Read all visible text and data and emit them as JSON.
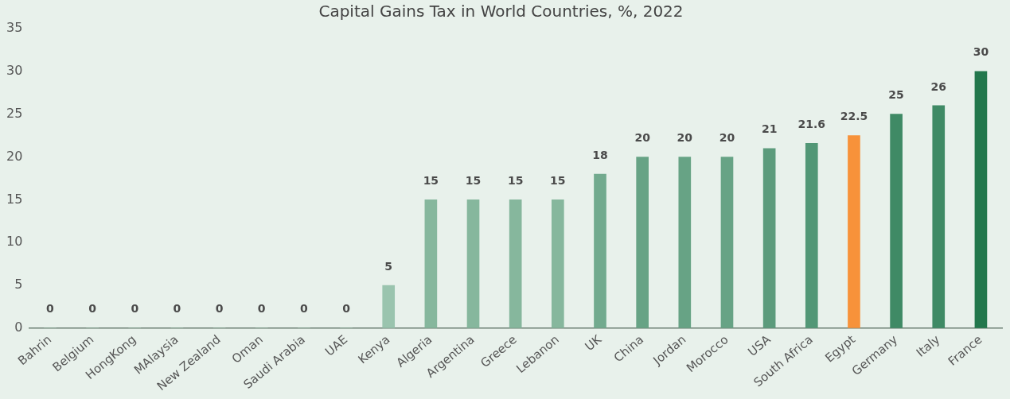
{
  "chart_data": {
    "type": "bar",
    "title": "Capital Gains Tax in World Countries, %, 2022",
    "categories": [
      "Bahrin",
      "Belgium",
      "HongKong",
      "MAlaysia",
      "New Zealand",
      "Oman",
      "Saudi Arabia",
      "UAE",
      "Kenya",
      "Algeria",
      "Argentina",
      "Greece",
      "Lebanon",
      "UK",
      "China",
      "Jordan",
      "Morocco",
      "USA",
      "South Africa",
      "Egypt",
      "Germany",
      "Italy",
      "France"
    ],
    "values": [
      0,
      0,
      0,
      0,
      0,
      0,
      0,
      0,
      5,
      15,
      15,
      15,
      15,
      18,
      20,
      20,
      20,
      21,
      21.6,
      22.5,
      25,
      26,
      30
    ],
    "colors": [
      "#9ac4ae",
      "#9ac4ae",
      "#9ac4ae",
      "#9ac4ae",
      "#9ac4ae",
      "#9ac4ae",
      "#9ac4ae",
      "#9ac4ae",
      "#9ac4ae",
      "#86b79d",
      "#86b79d",
      "#86b79d",
      "#86b79d",
      "#72aa8e",
      "#67a385",
      "#67a385",
      "#67a385",
      "#5c9b7c",
      "#529776",
      "#f7923a",
      "#3f8a65",
      "#3f8a65",
      "#22774c"
    ],
    "ylim": [
      0,
      35
    ],
    "yticks": [
      0,
      5,
      10,
      15,
      20,
      25,
      30,
      35
    ],
    "grid": false,
    "legend": false,
    "data_labels": true
  }
}
